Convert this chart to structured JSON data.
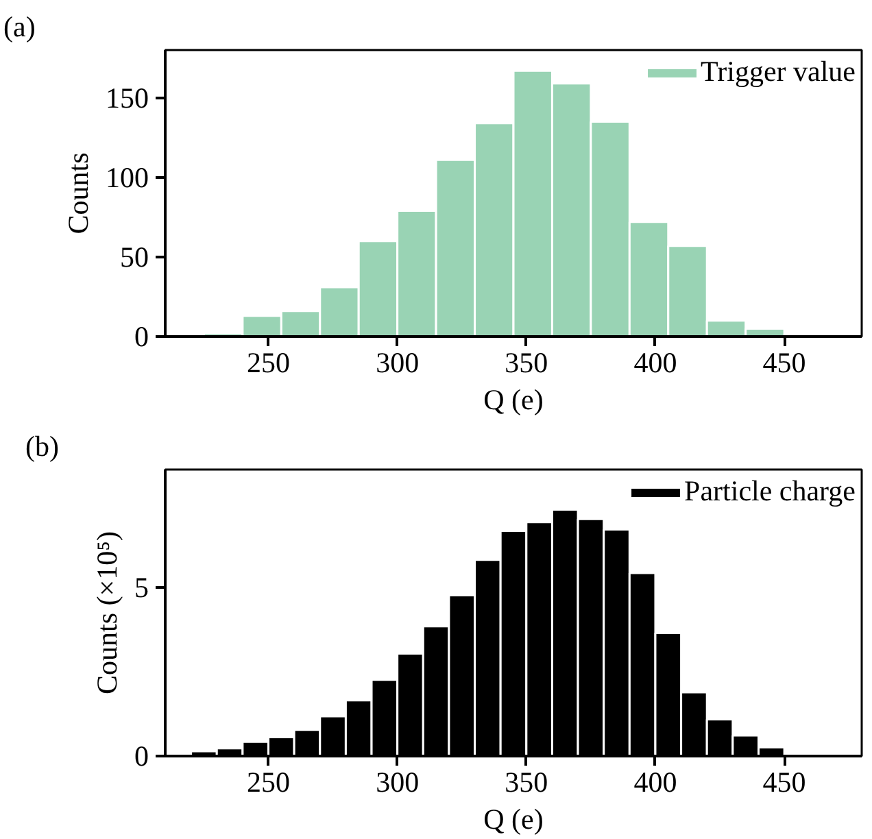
{
  "chart_data": [
    {
      "type": "histogram",
      "annotations": [
        "(a)"
      ],
      "xlabel": "Q (e)",
      "ylabel": "Counts",
      "bins": [
        225,
        240,
        255,
        270,
        285,
        300,
        315,
        330,
        345,
        360,
        375,
        390,
        405,
        420,
        435,
        450
      ],
      "series": [
        {
          "name": "Trigger value",
          "color": "#99d3b4",
          "values": [
            2,
            13,
            16,
            31,
            60,
            79,
            111,
            134,
            167,
            159,
            135,
            72,
            57,
            10,
            5
          ]
        }
      ],
      "xlim": [
        210,
        480
      ],
      "xticks": [
        250,
        300,
        350,
        400,
        450
      ],
      "ylim": [
        0,
        180
      ],
      "yticks": [
        0,
        50,
        100,
        150
      ],
      "legend": "top right"
    },
    {
      "type": "histogram",
      "annotations": [
        "(b)"
      ],
      "xlabel": "Q (e)",
      "ylabel": "Counts (×10⁵)",
      "bins": [
        220,
        230,
        240,
        250,
        260,
        270,
        280,
        290,
        300,
        310,
        320,
        330,
        340,
        350,
        360,
        370,
        380,
        390,
        400,
        410,
        420,
        430,
        440,
        450
      ],
      "series": [
        {
          "name": "Particle charge",
          "color": "#000000",
          "values": [
            0.14,
            0.23,
            0.42,
            0.56,
            0.78,
            1.18,
            1.65,
            2.26,
            3.04,
            3.85,
            4.77,
            5.82,
            6.68,
            6.94,
            7.31,
            7.03,
            6.72,
            5.43,
            3.65,
            1.89,
            1.09,
            0.61,
            0.26
          ]
        }
      ],
      "xlim": [
        210,
        480
      ],
      "xticks": [
        250,
        300,
        350,
        400,
        450
      ],
      "ylim": [
        0,
        8.5
      ],
      "yticks": [
        0,
        5
      ],
      "legend": "top right"
    }
  ]
}
